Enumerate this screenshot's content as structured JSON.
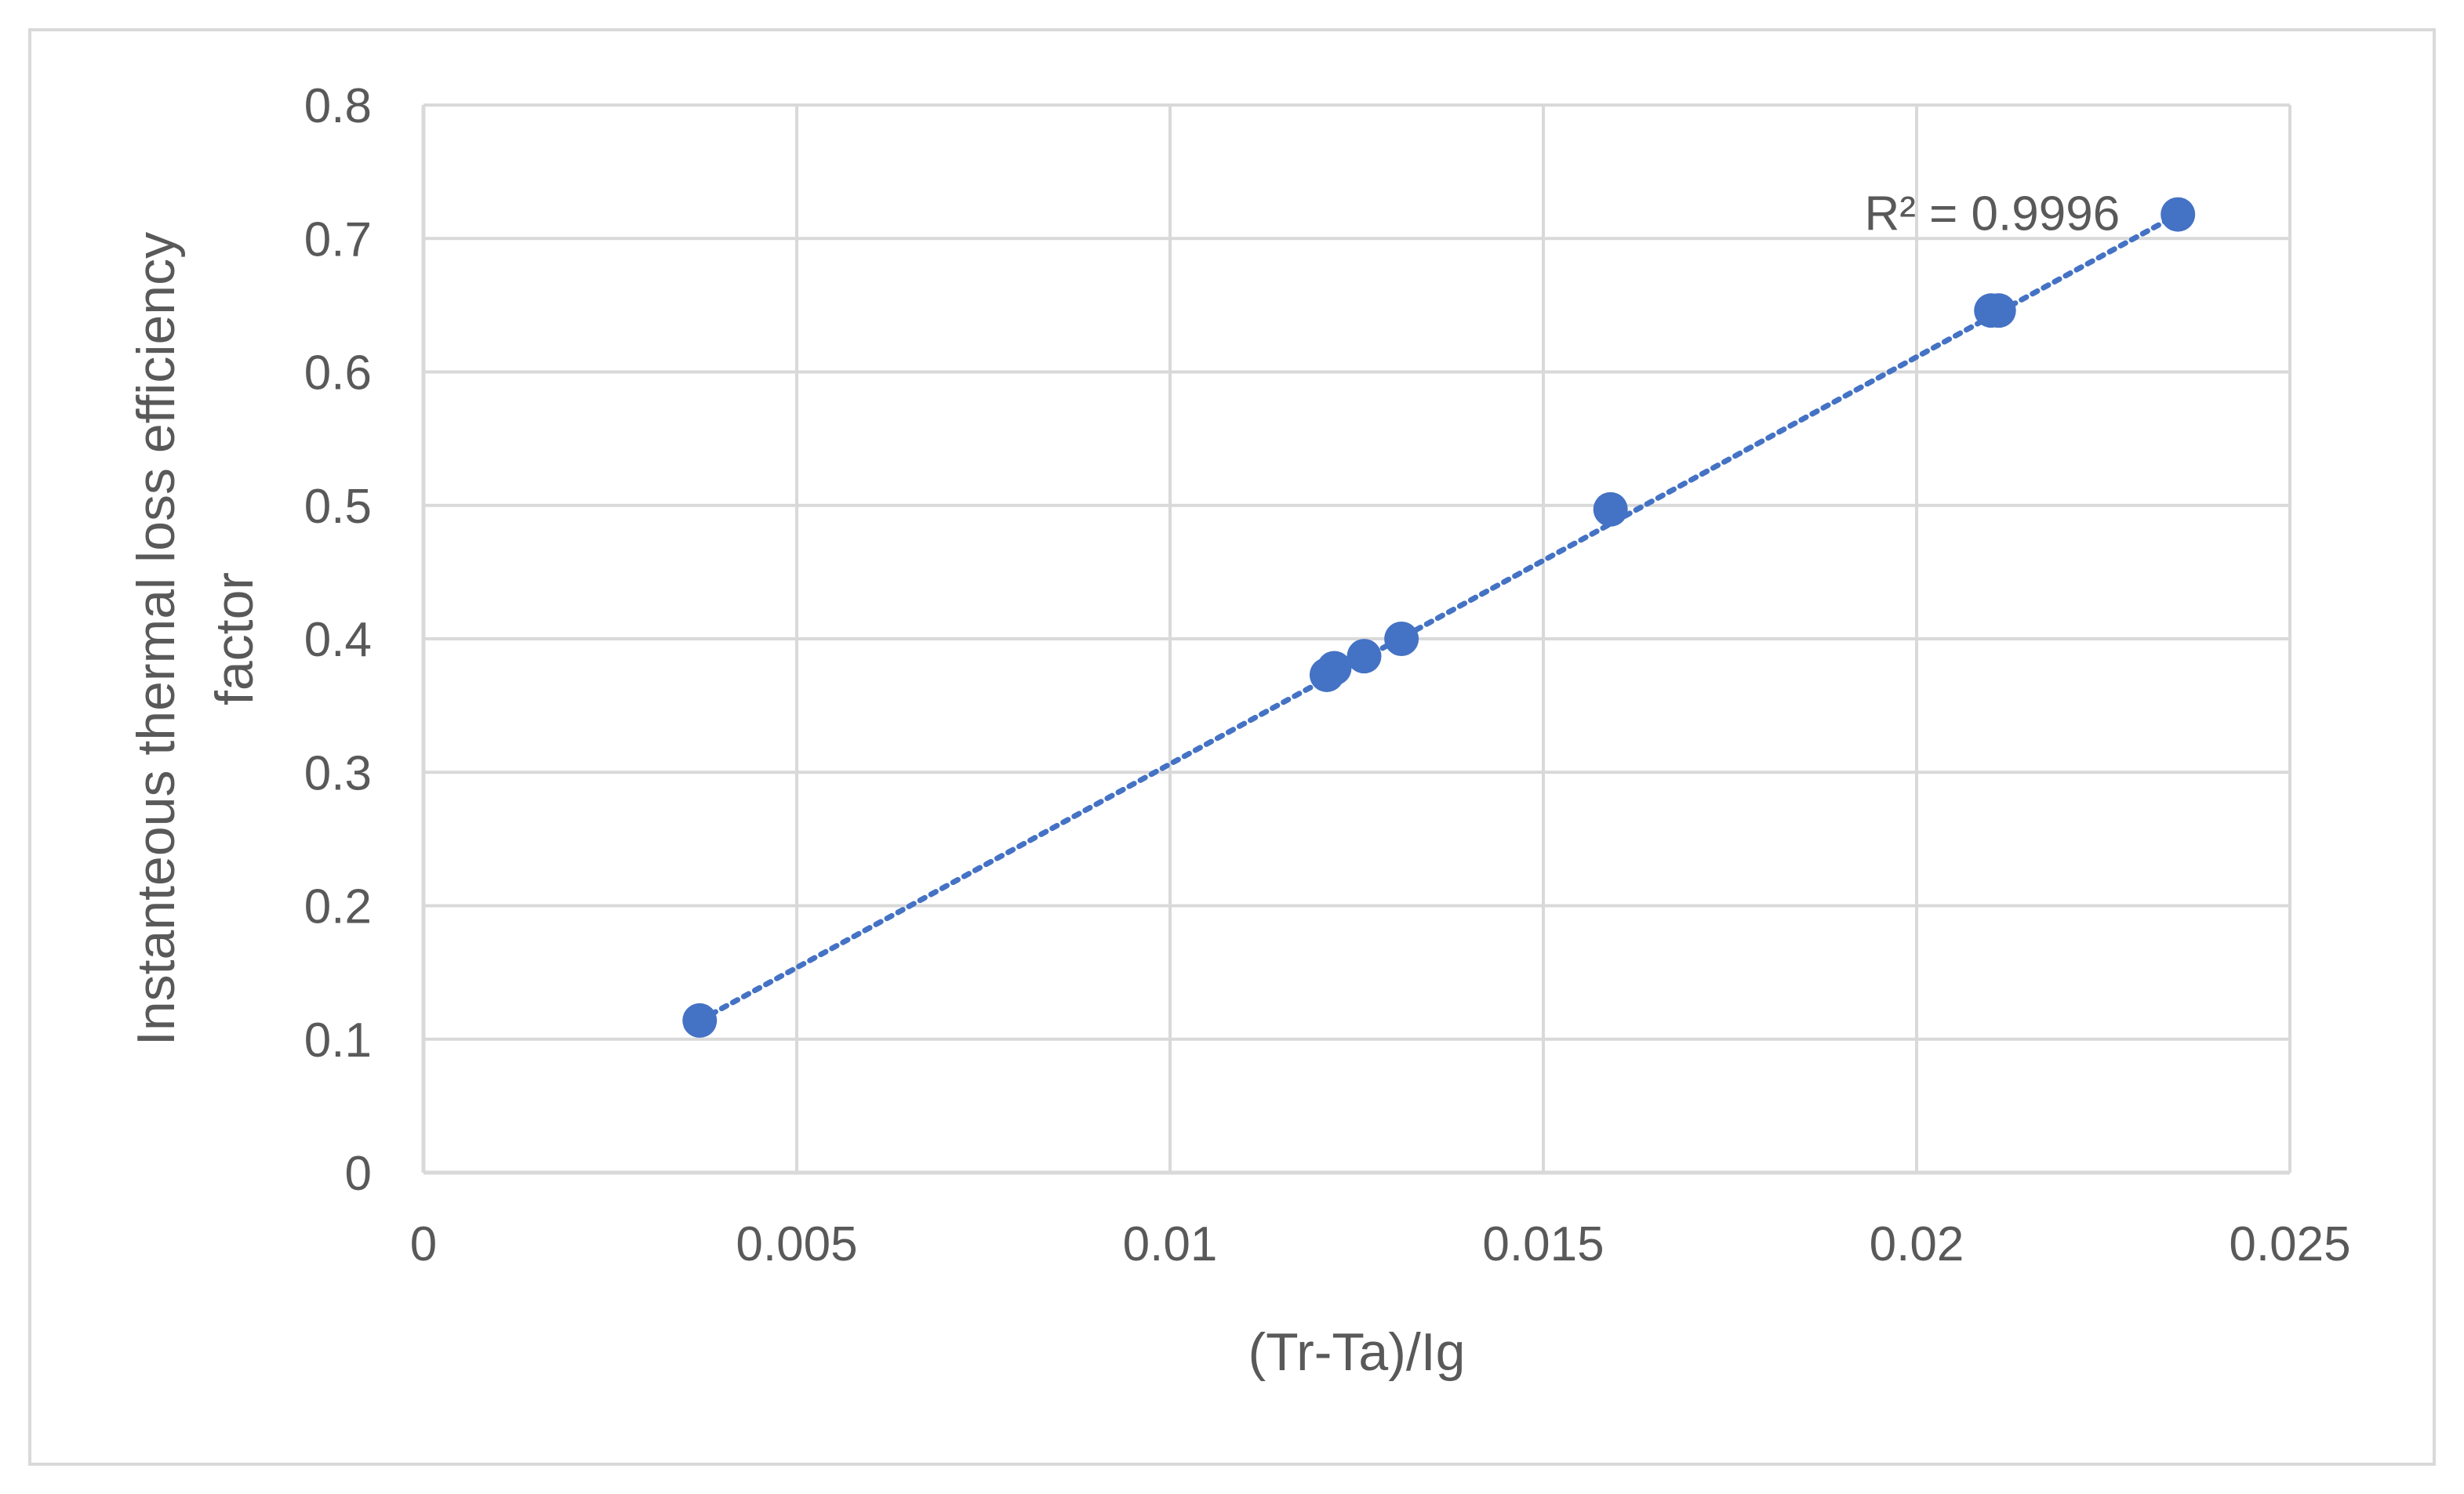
{
  "chart_data": {
    "type": "scatter",
    "xlabel": "(Tr-Ta)/Ig",
    "ylabel_lines": [
      "Instanteous thermal loss efficiency",
      "factor"
    ],
    "xlim": [
      0,
      0.025
    ],
    "ylim": [
      0,
      0.8
    ],
    "x_ticks": [
      0,
      0.005,
      0.01,
      0.015,
      0.02,
      0.025
    ],
    "x_tick_labels": [
      "0",
      "0.005",
      "0.01",
      "0.015",
      "0.02",
      "0.025"
    ],
    "y_ticks": [
      0,
      0.1,
      0.2,
      0.3,
      0.4,
      0.5,
      0.6,
      0.7,
      0.8
    ],
    "y_tick_labels": [
      "0",
      "0.1",
      "0.2",
      "0.3",
      "0.4",
      "0.5",
      "0.6",
      "0.7",
      "0.8"
    ],
    "grid": true,
    "points": [
      {
        "x": 0.0037,
        "y": 0.114
      },
      {
        "x": 0.0121,
        "y": 0.373
      },
      {
        "x": 0.0122,
        "y": 0.378
      },
      {
        "x": 0.0126,
        "y": 0.387
      },
      {
        "x": 0.0131,
        "y": 0.4
      },
      {
        "x": 0.0159,
        "y": 0.497
      },
      {
        "x": 0.021,
        "y": 0.646
      },
      {
        "x": 0.0211,
        "y": 0.646
      },
      {
        "x": 0.0235,
        "y": 0.718
      }
    ],
    "trendline": {
      "type": "linear",
      "style": "dotted",
      "start": {
        "x": 0.0037,
        "y": 0.114
      },
      "end": {
        "x": 0.0235,
        "y": 0.718
      },
      "label": "R² = 0.9996"
    },
    "colors": {
      "marker": "#4472c4",
      "trendline": "#4472c4",
      "grid": "#d9d9d9",
      "text": "#595959"
    }
  }
}
